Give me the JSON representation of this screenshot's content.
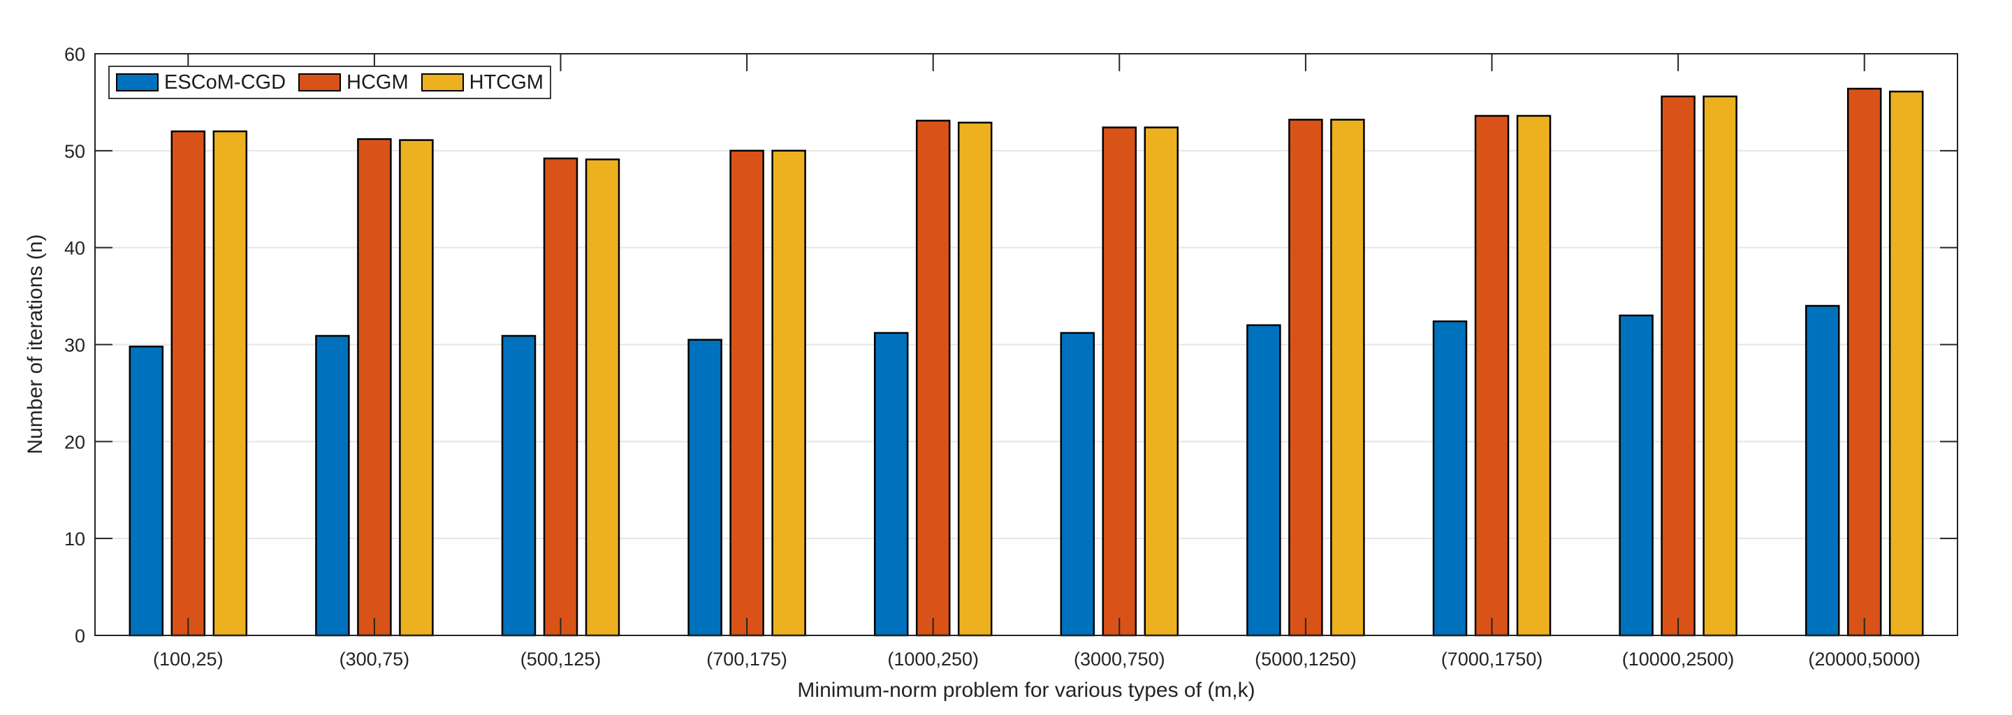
{
  "chart_data": {
    "type": "bar",
    "title": "",
    "xlabel": "Minimum-norm problem for various types of (m,k)",
    "ylabel": "Number of iterations (n)",
    "categories": [
      "(100,25)",
      "(300,75)",
      "(500,125)",
      "(700,175)",
      "(1000,250)",
      "(3000,750)",
      "(5000,1250)",
      "(7000,1750)",
      "(10000,2500)",
      "(20000,5000)"
    ],
    "series": [
      {
        "name": "ESCoM-CGD",
        "color": "#0072BD",
        "values": [
          29.8,
          30.9,
          30.9,
          30.5,
          31.2,
          31.2,
          32.0,
          32.4,
          33.0,
          34.0
        ]
      },
      {
        "name": "HCGM",
        "color": "#D95319",
        "values": [
          52.0,
          51.2,
          49.2,
          50.0,
          53.1,
          52.4,
          53.2,
          53.6,
          55.6,
          56.4
        ]
      },
      {
        "name": "HTCGM",
        "color": "#EDB120",
        "values": [
          52.0,
          51.1,
          49.1,
          50.0,
          52.9,
          52.4,
          53.2,
          53.6,
          55.6,
          56.1
        ]
      }
    ],
    "ylim": [
      0,
      60
    ],
    "yticks": [
      0,
      10,
      20,
      30,
      40,
      50,
      60
    ],
    "grid": "horizontal",
    "legend_position": "top-left",
    "bar_edge_color": "#000000",
    "axis_color": "#242424",
    "grid_color": "#e5e5e5",
    "background_color": "#ffffff"
  }
}
